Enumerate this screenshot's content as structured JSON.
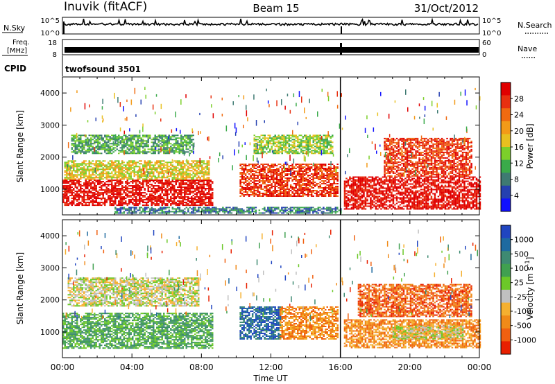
{
  "header": {
    "station": "Inuvik (fitACF)",
    "beam": "Beam 15",
    "date": "31/Oct/2012"
  },
  "summary_panels": {
    "nsky_label": "N.Sky",
    "nsky_top": "10^5",
    "nsky_bottom": "10^0",
    "nsearch_label": "N.Search",
    "nsearch_top": "10^5",
    "nsearch_bottom": "10^0",
    "freq_label_1": "Freq.",
    "freq_label_2": "[MHz]",
    "freq_top": "18",
    "freq_bottom": "8",
    "nave_label": "Nave",
    "nave_top": "60",
    "nave_bottom": "0",
    "cpid_label": "CPID",
    "cpid_value": "twofsound 3501"
  },
  "chart_data": [
    {
      "type": "heatmap",
      "name": "power",
      "ylabel": "Slant Range [km]",
      "xlabel": "Time UT",
      "xlim": [
        0,
        24
      ],
      "ylim": [
        200,
        4500
      ],
      "xticks": [
        "00:00",
        "04:00",
        "08:00",
        "12:00",
        "16:00",
        "20:00",
        "00:00"
      ],
      "yticks": [
        1000,
        2000,
        3000,
        4000
      ],
      "colorbar": {
        "label": "Power [dB]",
        "ticks": [
          "4",
          "8",
          "12",
          "16",
          "20",
          "24",
          "28"
        ],
        "colors": [
          "#1010ff",
          "#2540b0",
          "#3e7a72",
          "#3aaa4a",
          "#7ccf2a",
          "#e8c020",
          "#f39a18",
          "#f06a10",
          "#e83010",
          "#e00000"
        ]
      },
      "regions": [
        {
          "t0": 0.0,
          "t1": 8.6,
          "r0": 500,
          "r1": 1300,
          "level": 9
        },
        {
          "t0": 0.1,
          "t1": 8.4,
          "r0": 1300,
          "r1": 1900,
          "level": 5
        },
        {
          "t0": 0.5,
          "t1": 7.5,
          "r0": 2100,
          "r1": 2700,
          "level": 3
        },
        {
          "t0": 10.2,
          "t1": 15.8,
          "r0": 800,
          "r1": 1800,
          "level": 8
        },
        {
          "t0": 11.0,
          "t1": 15.5,
          "r0": 2100,
          "r1": 2700,
          "level": 4
        },
        {
          "t0": 16.2,
          "t1": 24.0,
          "r0": 400,
          "r1": 1400,
          "level": 9
        },
        {
          "t0": 18.5,
          "t1": 23.5,
          "r0": 1400,
          "r1": 2600,
          "level": 8
        },
        {
          "t0": 3.0,
          "t1": 16.0,
          "r0": 250,
          "r1": 450,
          "level": 2
        }
      ]
    },
    {
      "type": "heatmap",
      "name": "velocity",
      "ylabel": "Slant Range [km]",
      "xlabel": "Time UT",
      "xlim": [
        0,
        24
      ],
      "ylim": [
        200,
        4500
      ],
      "xticks": [
        "00:00",
        "04:00",
        "08:00",
        "12:00",
        "16:00",
        "20:00",
        "00:00"
      ],
      "yticks": [
        1000,
        2000,
        3000,
        4000
      ],
      "colorbar": {
        "label": "Velocity [m s^-1]",
        "ticks": [
          "1000",
          "500",
          "100",
          "25",
          "-25",
          "-100",
          "-500",
          "-1000"
        ],
        "colors": [
          "#2045c0",
          "#1e6aa0",
          "#3e8a72",
          "#40a050",
          "#6cc828",
          "#c0c0c0",
          "#f5b030",
          "#f08a18",
          "#f06010",
          "#e82000"
        ]
      },
      "regions": [
        {
          "t0": 0.0,
          "t1": 8.6,
          "r0": 500,
          "r1": 1600,
          "level": 3
        },
        {
          "t0": 0.3,
          "t1": 7.8,
          "r0": 1800,
          "r1": 2700,
          "level": 5
        },
        {
          "t0": 10.2,
          "t1": 12.5,
          "r0": 800,
          "r1": 1800,
          "level": 1
        },
        {
          "t0": 12.5,
          "t1": 15.8,
          "r0": 800,
          "r1": 1800,
          "level": 7
        },
        {
          "t0": 16.2,
          "t1": 24.0,
          "r0": 500,
          "r1": 1400,
          "level": 7
        },
        {
          "t0": 19.0,
          "t1": 23.0,
          "r0": 800,
          "r1": 1200,
          "level": 5
        },
        {
          "t0": 17.0,
          "t1": 23.5,
          "r0": 1500,
          "r1": 2500,
          "level": 8
        }
      ]
    }
  ]
}
